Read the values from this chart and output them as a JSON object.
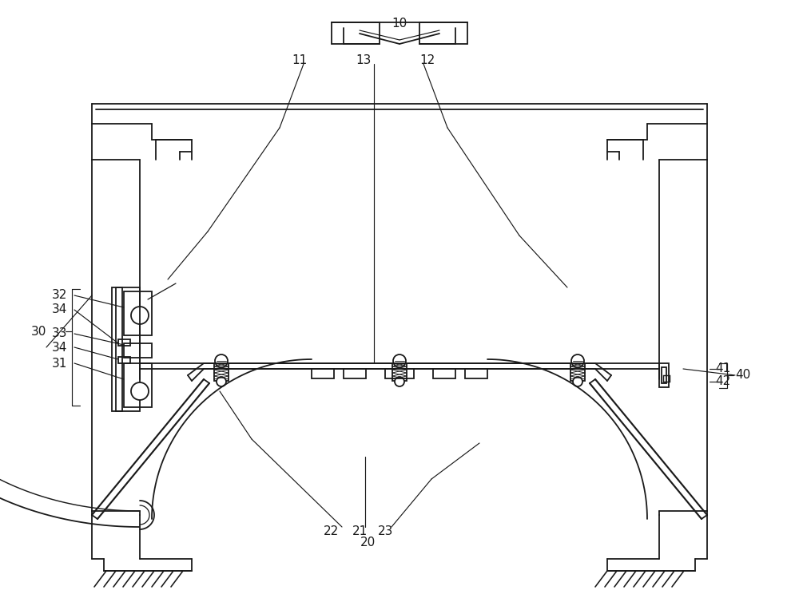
{
  "background_color": "#ffffff",
  "line_color": "#1a1a1a",
  "lw": 1.3,
  "fig_w": 10.0,
  "fig_h": 7.49
}
